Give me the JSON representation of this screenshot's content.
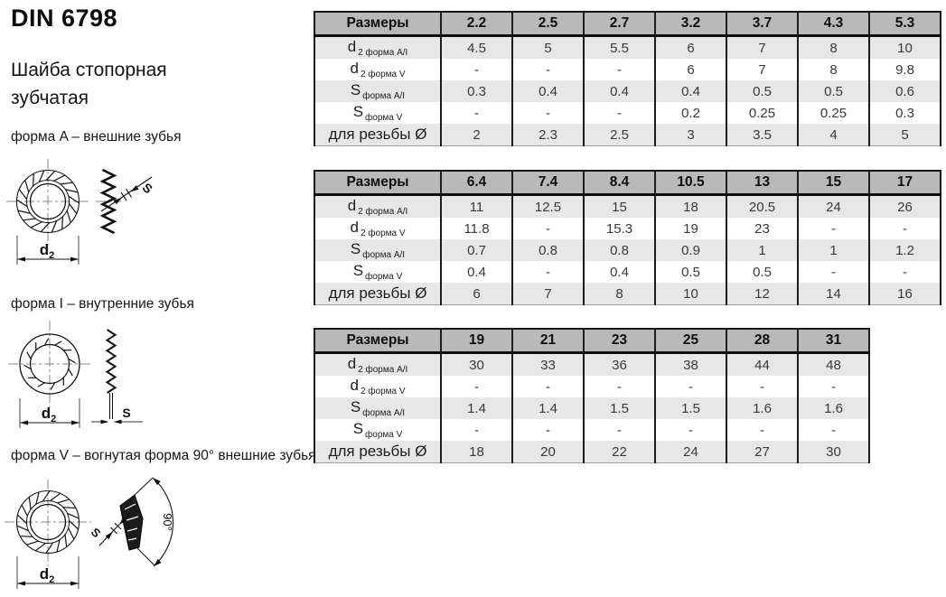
{
  "page": {
    "title": "DIN 6798",
    "subtitle_line1": "Шайба стопорная",
    "subtitle_line2": "зубчатая"
  },
  "forms": [
    {
      "label": "форма A – внешние зубья"
    },
    {
      "label": "форма I – внутренние зубья"
    },
    {
      "label": "форма V – вогнутая форма 90° внешние зубья"
    }
  ],
  "drawing_labels": {
    "d_main": "d",
    "d_sub": "2",
    "s": "S",
    "angle": "90°"
  },
  "tables": [
    {
      "header_label": "Размеры",
      "columns": [
        "2.2",
        "2.5",
        "2.7",
        "3.2",
        "3.7",
        "4.3",
        "5.3"
      ],
      "rows": [
        {
          "main": "d",
          "sub": "2 форма A/I",
          "values": [
            "4.5",
            "5",
            "5.5",
            "6",
            "7",
            "8",
            "10"
          ]
        },
        {
          "main": "d",
          "sub": "2 форма V",
          "values": [
            "-",
            "-",
            "-",
            "6",
            "7",
            "8",
            "9.8"
          ]
        },
        {
          "main": "S",
          "sub": "форма A/I",
          "values": [
            "0.3",
            "0.4",
            "0.4",
            "0.4",
            "0.5",
            "0.5",
            "0.6"
          ]
        },
        {
          "main": "S",
          "sub": "форма V",
          "values": [
            "-",
            "-",
            "-",
            "0.2",
            "0.25",
            "0.25",
            "0.3"
          ]
        },
        {
          "main": "для резьбы Ø",
          "sub": "",
          "values": [
            "2",
            "2.3",
            "2.5",
            "3",
            "3.5",
            "4",
            "5"
          ]
        }
      ]
    },
    {
      "header_label": "Размеры",
      "columns": [
        "6.4",
        "7.4",
        "8.4",
        "10.5",
        "13",
        "15",
        "17"
      ],
      "rows": [
        {
          "main": "d",
          "sub": "2 форма A/I",
          "values": [
            "11",
            "12.5",
            "15",
            "18",
            "20.5",
            "24",
            "26"
          ]
        },
        {
          "main": "d",
          "sub": "2 форма V",
          "values": [
            "11.8",
            "-",
            "15.3",
            "19",
            "23",
            "-",
            "-"
          ]
        },
        {
          "main": "S",
          "sub": "форма A/I",
          "values": [
            "0.7",
            "0.8",
            "0.8",
            "0.9",
            "1",
            "1",
            "1.2"
          ]
        },
        {
          "main": "S",
          "sub": "форма V",
          "values": [
            "0.4",
            "-",
            "0.4",
            "0.5",
            "0.5",
            "-",
            "-"
          ]
        },
        {
          "main": "для резьбы Ø",
          "sub": "",
          "values": [
            "6",
            "7",
            "8",
            "10",
            "12",
            "14",
            "16"
          ]
        }
      ]
    },
    {
      "header_label": "Размеры",
      "columns": [
        "19",
        "21",
        "23",
        "25",
        "28",
        "31"
      ],
      "rows": [
        {
          "main": "d",
          "sub": "2 форма A/I",
          "values": [
            "30",
            "33",
            "36",
            "38",
            "44",
            "48"
          ]
        },
        {
          "main": "d",
          "sub": "2 форма V",
          "values": [
            "-",
            "-",
            "-",
            "-",
            "-",
            "-"
          ]
        },
        {
          "main": "S",
          "sub": "форма A/I",
          "values": [
            "1.4",
            "1.4",
            "1.5",
            "1.5",
            "1.6",
            "1.6"
          ]
        },
        {
          "main": "S",
          "sub": "форма V",
          "values": [
            "-",
            "-",
            "-",
            "-",
            "-",
            "-"
          ]
        },
        {
          "main": "для резьбы Ø",
          "sub": "",
          "values": [
            "18",
            "20",
            "22",
            "24",
            "27",
            "30"
          ]
        }
      ]
    }
  ]
}
